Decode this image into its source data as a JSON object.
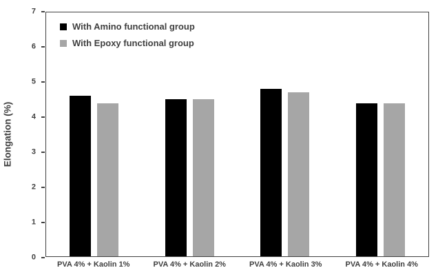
{
  "chart_data": {
    "type": "bar",
    "title": "",
    "xlabel": "",
    "ylabel": "Elongation (%)",
    "ylim": [
      0,
      7
    ],
    "y_ticks": [
      0,
      1,
      2,
      3,
      4,
      5,
      6,
      7
    ],
    "grid": false,
    "legend_position": "top-left-inside",
    "categories": [
      "PVA 4% + Kaolin 1%",
      "PVA 4% + Kaolin 2%",
      "PVA 4% + Kaolin 3%",
      "PVA 4% + Kaolin 4%"
    ],
    "series": [
      {
        "name": "With Amino functional group",
        "color": "#000000",
        "values": [
          4.6,
          4.5,
          4.8,
          4.4
        ]
      },
      {
        "name": "With Epoxy functional group",
        "color": "#a6a6a6",
        "values": [
          4.4,
          4.5,
          4.7,
          4.4
        ]
      }
    ]
  },
  "colors": {
    "axis": "#3f3f3f",
    "text": "#3f3f3f",
    "background": "#ffffff"
  }
}
